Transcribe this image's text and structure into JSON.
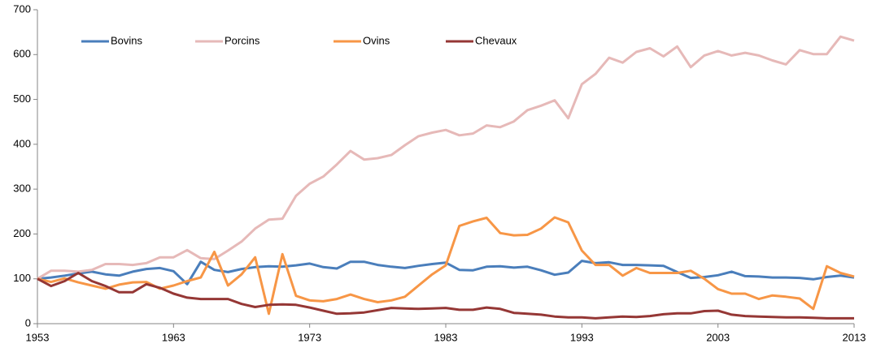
{
  "chart_data": {
    "type": "line",
    "x": [
      1953,
      1954,
      1955,
      1956,
      1957,
      1958,
      1959,
      1960,
      1961,
      1962,
      1963,
      1964,
      1965,
      1966,
      1967,
      1968,
      1969,
      1970,
      1971,
      1972,
      1973,
      1974,
      1975,
      1976,
      1977,
      1978,
      1979,
      1980,
      1981,
      1982,
      1983,
      1984,
      1985,
      1986,
      1987,
      1988,
      1989,
      1990,
      1991,
      1992,
      1993,
      1994,
      1995,
      1996,
      1997,
      1998,
      1999,
      2000,
      2001,
      2002,
      2003,
      2004,
      2005,
      2006,
      2007,
      2008,
      2009,
      2010,
      2011,
      2012,
      2013
    ],
    "xlim": [
      1953,
      2013
    ],
    "xticks": [
      1953,
      1963,
      1973,
      1983,
      1993,
      2003,
      2013
    ],
    "ylim": [
      0,
      700
    ],
    "yticks": [
      0,
      100,
      200,
      300,
      400,
      500,
      600,
      700
    ],
    "grid": false,
    "legend": "top-left",
    "series": [
      {
        "name": "Bovins",
        "color": "#4a7ebb",
        "values": [
          100,
          103,
          107,
          112,
          116,
          110,
          107,
          116,
          122,
          124,
          117,
          88,
          138,
          120,
          115,
          122,
          126,
          128,
          127,
          130,
          134,
          126,
          123,
          138,
          138,
          131,
          127,
          124,
          129,
          133,
          136,
          120,
          119,
          127,
          128,
          125,
          127,
          119,
          109,
          114,
          140,
          135,
          137,
          131,
          131,
          130,
          129,
          115,
          102,
          104,
          108,
          116,
          106,
          105,
          103,
          103,
          102,
          99,
          104,
          107,
          103
        ]
      },
      {
        "name": "Porcins",
        "color": "#e6b9b8",
        "values": [
          100,
          118,
          118,
          116,
          120,
          133,
          133,
          131,
          135,
          148,
          148,
          164,
          146,
          144,
          163,
          183,
          212,
          232,
          234,
          285,
          312,
          328,
          355,
          385,
          366,
          369,
          376,
          398,
          418,
          426,
          432,
          420,
          424,
          442,
          438,
          451,
          476,
          486,
          498,
          458,
          534,
          557,
          593,
          582,
          606,
          614,
          596,
          618,
          572,
          598,
          608,
          598,
          604,
          598,
          587,
          578,
          610,
          601,
          601,
          640,
          631
        ]
      },
      {
        "name": "Ovins",
        "color": "#f79646",
        "values": [
          100,
          93,
          101,
          92,
          85,
          78,
          87,
          92,
          93,
          78,
          85,
          95,
          103,
          160,
          85,
          110,
          148,
          22,
          155,
          62,
          52,
          50,
          55,
          65,
          55,
          48,
          52,
          60,
          85,
          110,
          130,
          218,
          228,
          236,
          202,
          197,
          198,
          212,
          237,
          226,
          163,
          131,
          131,
          107,
          124,
          113,
          113,
          113,
          118,
          100,
          77,
          67,
          67,
          55,
          63,
          60,
          56,
          33,
          128,
          113,
          105
        ]
      },
      {
        "name": "Chevaux",
        "color": "#953735",
        "values": [
          100,
          84,
          95,
          113,
          95,
          84,
          70,
          70,
          88,
          80,
          67,
          58,
          55,
          55,
          55,
          44,
          37,
          42,
          43,
          42,
          36,
          29,
          22,
          23,
          25,
          30,
          35,
          34,
          33,
          34,
          35,
          31,
          31,
          36,
          33,
          24,
          22,
          20,
          16,
          14,
          14,
          12,
          14,
          16,
          15,
          17,
          21,
          23,
          23,
          28,
          29,
          20,
          17,
          16,
          15,
          14,
          14,
          13,
          12,
          12,
          12
        ]
      }
    ]
  }
}
